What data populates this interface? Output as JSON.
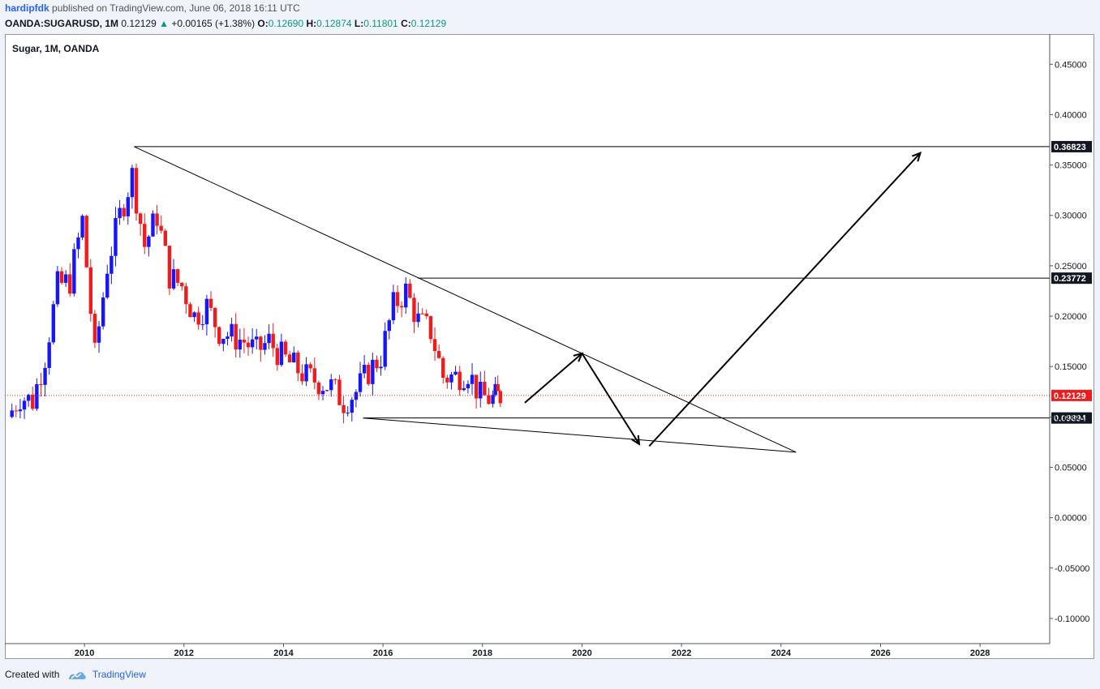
{
  "header": {
    "author": "hardipfdk",
    "published_text": "published on TradingView.com, June 06, 2018 16:11 UTC",
    "symbol": "OANDA:SUGARUSD, 1M",
    "last_price": "0.12129",
    "change_arrow": "▲",
    "change_text": "+0.00165 (+1.38%)",
    "open_label": "O:",
    "open_value": "0.12690",
    "high_label": "H:",
    "high_value": "0.12874",
    "low_label": "L:",
    "low_value": "0.11801",
    "close_label": "C:",
    "close_value": "0.12129"
  },
  "footer": {
    "created_with": "Created with",
    "brand": "TradingView"
  },
  "colors": {
    "up_candle": "#1515ff",
    "down_candle": "#ee1c1c",
    "line": "#000000",
    "price_line": "#ee1c1c",
    "label_bg": "#131722",
    "price_label_bg": "#ee1c1c"
  },
  "chart_data": {
    "type": "candlestick",
    "title": "Sugar, 1M, OANDA",
    "interval": "1M",
    "x_axis": {
      "ticks": [
        "2010",
        "2012",
        "2014",
        "2016",
        "2018",
        "2020",
        "2022",
        "2024",
        "2026",
        "2028"
      ],
      "range": [
        2008.4,
        2029.4
      ]
    },
    "y_axis": {
      "ticks": [
        "0.45000",
        "0.40000",
        "0.35000",
        "0.30000",
        "0.25000",
        "0.20000",
        "0.15000",
        "0.10000",
        "0.05000",
        "0.00000",
        "-0.05000",
        "-0.10000"
      ],
      "range": [
        -0.125,
        0.48
      ],
      "position": "right"
    },
    "series": [
      {
        "x": [
          2008.5,
          2008.75,
          2009.0,
          2009.25,
          2009.5,
          2009.75,
          2010.0,
          2010.25,
          2010.5,
          2010.75,
          2011.0,
          2011.25,
          2011.5,
          2011.75,
          2012.0,
          2012.25,
          2012.5,
          2012.75,
          2013.0,
          2013.25,
          2013.5,
          2013.75,
          2014.0,
          2014.25,
          2014.5,
          2014.75,
          2015.0,
          2015.25,
          2015.5,
          2015.75,
          2016.0,
          2016.25,
          2016.5,
          2016.75,
          2017.0,
          2017.25,
          2017.5,
          2017.75,
          2018.0,
          2018.25,
          2018.4
        ],
        "close": [
          0.1,
          0.12,
          0.116,
          0.16,
          0.23,
          0.235,
          0.295,
          0.16,
          0.25,
          0.3,
          0.34,
          0.27,
          0.3,
          0.24,
          0.23,
          0.2,
          0.21,
          0.185,
          0.18,
          0.175,
          0.165,
          0.175,
          0.16,
          0.15,
          0.14,
          0.135,
          0.13,
          0.115,
          0.125,
          0.145,
          0.16,
          0.21,
          0.225,
          0.195,
          0.185,
          0.14,
          0.14,
          0.145,
          0.12,
          0.118,
          0.12129
        ]
      }
    ],
    "annotations": {
      "horizontal_levels": [
        "0.36823",
        "0.23772",
        "0.09894"
      ],
      "current_price": "0.12129",
      "trendlines": [
        {
          "from": [
            2011.0,
            0.3682
          ],
          "to": [
            2024.3,
            0.065
          ]
        },
        {
          "from": [
            2015.6,
            0.0989
          ],
          "to": [
            2024.3,
            0.065
          ]
        }
      ],
      "arrows": [
        {
          "from": [
            2018.85,
            0.114
          ],
          "to": [
            2020.0,
            0.163
          ]
        },
        {
          "from": [
            2020.0,
            0.163
          ],
          "to": [
            2021.15,
            0.073
          ]
        },
        {
          "from": [
            2021.35,
            0.071
          ],
          "to": [
            2026.8,
            0.362
          ]
        }
      ]
    }
  }
}
